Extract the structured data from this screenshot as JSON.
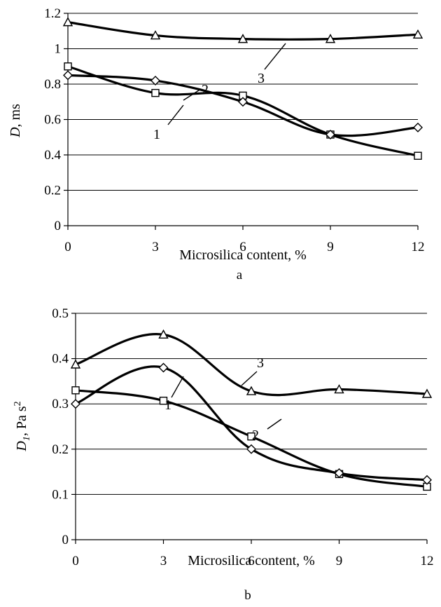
{
  "chart_data": [
    {
      "type": "line",
      "panel_label": "a",
      "xlabel": "Microsilica content, %",
      "ylabel_main": "D",
      "ylabel_unit": ", ms",
      "x": [
        0,
        3,
        6,
        9,
        12
      ],
      "xlim": [
        0,
        12
      ],
      "ylim": [
        0,
        1.2
      ],
      "xticks": [
        "0",
        "3",
        "6",
        "9",
        "12"
      ],
      "yticks": [
        "0",
        "0.2",
        "0.4",
        "0.6",
        "0.8",
        "1",
        "1.2"
      ],
      "grid": "horizontal",
      "series": [
        {
          "name": "1",
          "marker": "square",
          "values": [
            0.9,
            0.75,
            0.735,
            0.515,
            0.395
          ]
        },
        {
          "name": "2",
          "marker": "diamond",
          "values": [
            0.85,
            0.82,
            0.7,
            0.515,
            0.555
          ]
        },
        {
          "name": "3",
          "marker": "triangle",
          "values": [
            1.15,
            1.075,
            1.055,
            1.055,
            1.08
          ]
        }
      ]
    },
    {
      "type": "line",
      "panel_label": "b",
      "xlabel": "Microsilica content, %",
      "ylabel_main": "D",
      "ylabel_sub": "1",
      "ylabel_unit": ", Pa s",
      "ylabel_sup": "2",
      "x": [
        0,
        3,
        6,
        9,
        12
      ],
      "xlim": [
        0,
        12
      ],
      "ylim": [
        0,
        0.5
      ],
      "xticks": [
        "0",
        "3",
        "6",
        "9",
        "12"
      ],
      "yticks": [
        "0",
        "0.1",
        "0.2",
        "0.3",
        "0.4",
        "0.5"
      ],
      "grid": "horizontal",
      "series": [
        {
          "name": "1",
          "marker": "square",
          "values": [
            0.33,
            0.307,
            0.228,
            0.145,
            0.117
          ]
        },
        {
          "name": "2",
          "marker": "diamond",
          "values": [
            0.3,
            0.38,
            0.2,
            0.147,
            0.132
          ]
        },
        {
          "name": "3",
          "marker": "triangle",
          "values": [
            0.387,
            0.453,
            0.328,
            0.332,
            0.322
          ]
        }
      ]
    }
  ]
}
